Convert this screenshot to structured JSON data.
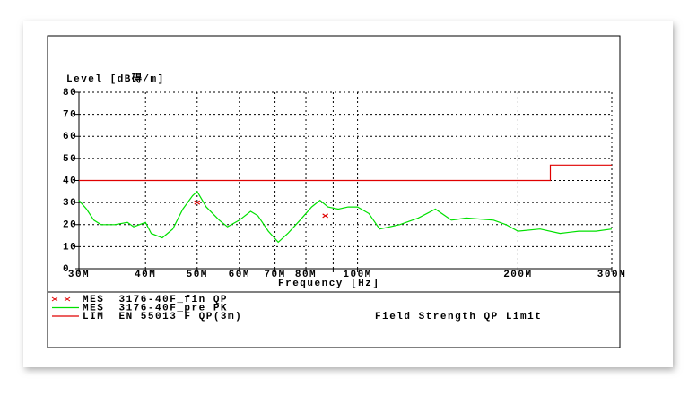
{
  "chart_data": {
    "type": "line",
    "y_label": "Level [dB碍/m]",
    "x_label": "Frequency [Hz]",
    "log_x": true,
    "grid": true,
    "xlim": [
      30000000,
      300000000
    ],
    "ylim": [
      0,
      80
    ],
    "xticks": [
      {
        "value": 30000000,
        "label": "30M"
      },
      {
        "value": 40000000,
        "label": "40M"
      },
      {
        "value": 50000000,
        "label": "50M"
      },
      {
        "value": 60000000,
        "label": "60M"
      },
      {
        "value": 70000000,
        "label": "70M"
      },
      {
        "value": 80000000,
        "label": "80M"
      },
      {
        "value": 90000000,
        "label": null
      },
      {
        "value": 100000000,
        "label": "100M"
      },
      {
        "value": 200000000,
        "label": "200M"
      },
      {
        "value": 300000000,
        "label": "300M"
      }
    ],
    "yticks": [
      0,
      10,
      20,
      30,
      40,
      50,
      60,
      70,
      80
    ],
    "series": [
      {
        "name": "MES  3176-40F_fin QP",
        "color": "#e00000",
        "marker": "x",
        "x": [
          50000000,
          87000000
        ],
        "values": [
          30,
          24
        ]
      },
      {
        "name": "MES  3176-40F_pre PK",
        "color": "#00e000",
        "x": [
          30000000,
          31000000,
          32000000,
          33000000,
          35000000,
          37000000,
          38000000,
          40000000,
          41000000,
          43000000,
          45000000,
          47000000,
          49000000,
          50000000,
          52000000,
          55000000,
          57000000,
          60000000,
          63000000,
          65000000,
          68000000,
          71000000,
          74000000,
          78000000,
          82000000,
          85000000,
          88000000,
          92000000,
          96000000,
          100000000,
          105000000,
          110000000,
          120000000,
          130000000,
          140000000,
          150000000,
          160000000,
          180000000,
          190000000,
          200000000,
          220000000,
          240000000,
          260000000,
          280000000,
          300000000
        ],
        "values": [
          31,
          27,
          22,
          20,
          20,
          21,
          19,
          21,
          16,
          14,
          18,
          27,
          33,
          35,
          28,
          22,
          19,
          22,
          26,
          24,
          17,
          12,
          16,
          22,
          28,
          31,
          28,
          27,
          28,
          28,
          25,
          18,
          20,
          23,
          27,
          22,
          23,
          22,
          20,
          17,
          18,
          16,
          17,
          17,
          18
        ]
      },
      {
        "name": "LIM  EN 55013 F QP(3m)",
        "description": "Field Strength QP Limit",
        "color": "#e00000",
        "x": [
          30000000,
          230000000,
          230000000,
          300000000
        ],
        "values": [
          40,
          40,
          47,
          47
        ]
      }
    ]
  }
}
